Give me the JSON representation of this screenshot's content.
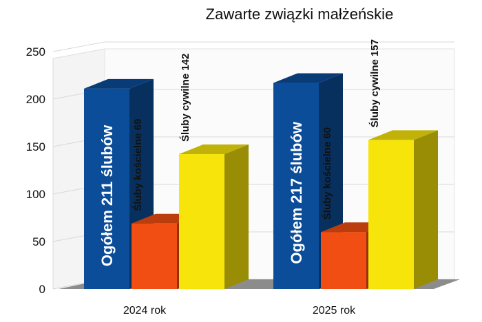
{
  "chart_data": {
    "type": "bar",
    "title": "Zawarte związki małżeńskie",
    "categories": [
      "2024 rok",
      "2025 rok"
    ],
    "series": [
      {
        "name": "Ogółem",
        "values": [
          211,
          217
        ],
        "color": "#0b4d99"
      },
      {
        "name": "Śluby kościelne",
        "values": [
          69,
          60
        ],
        "color": "#f04e12"
      },
      {
        "name": "Śluby cywilne",
        "values": [
          142,
          157
        ],
        "color": "#f6e40a"
      }
    ],
    "bar_labels": [
      [
        "Ogółem 211 ślubów",
        "Ogółem 217 ślubów"
      ],
      [
        "Śluby kościelne 69",
        "Śluby kościelne 60"
      ],
      [
        "Śluby cywilne 142",
        "Śluby cywilne 157"
      ]
    ],
    "yticks": [
      0,
      50,
      100,
      150,
      200,
      250
    ],
    "ylim": [
      0,
      250
    ],
    "grid": true,
    "legend": "none",
    "style": "3d"
  }
}
